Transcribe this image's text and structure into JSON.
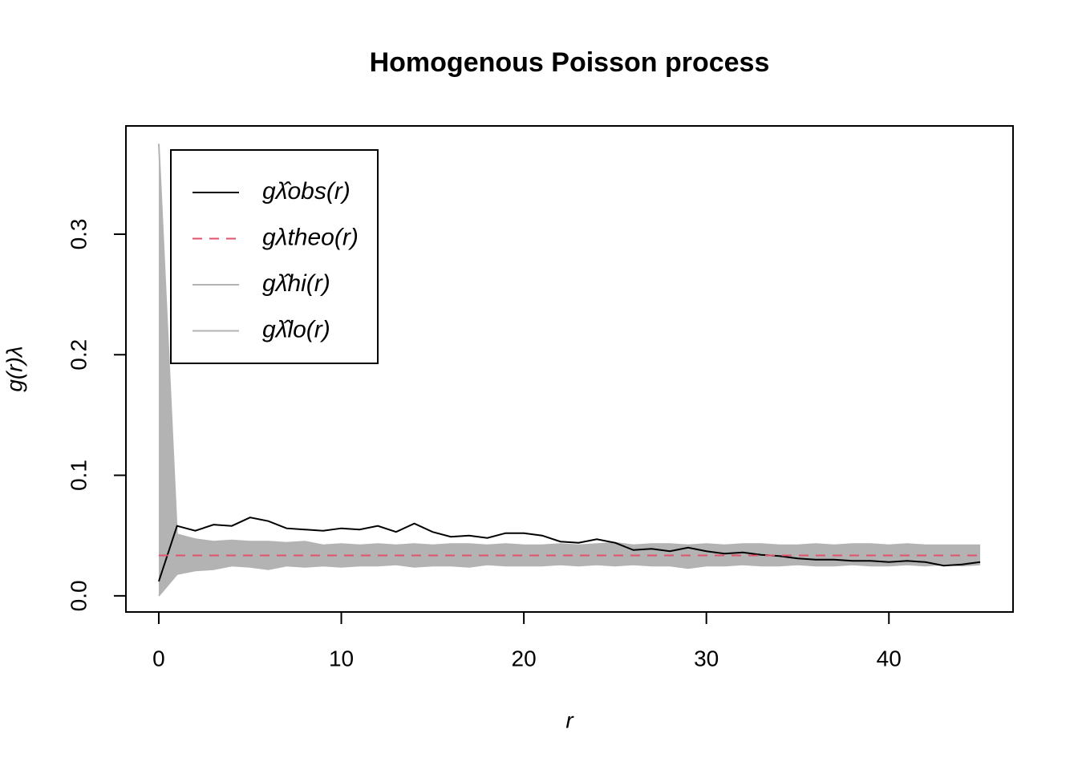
{
  "chart_data": {
    "type": "line",
    "title": "Homogenous Poisson process",
    "x_label": "r",
    "y_label": "g(r)λ",
    "x": [
      0,
      1,
      2,
      3,
      4,
      5,
      6,
      7,
      8,
      9,
      10,
      11,
      12,
      13,
      14,
      15,
      16,
      17,
      18,
      19,
      20,
      21,
      22,
      23,
      24,
      25,
      26,
      27,
      28,
      29,
      30,
      31,
      32,
      33,
      34,
      35,
      36,
      37,
      38,
      39,
      40,
      41,
      42,
      43,
      44,
      45
    ],
    "series": [
      {
        "name": "gλ̂obs(r)",
        "color": "#000000",
        "dash": false,
        "values": [
          0.012,
          0.058,
          0.054,
          0.059,
          0.058,
          0.065,
          0.062,
          0.056,
          0.055,
          0.054,
          0.056,
          0.055,
          0.058,
          0.053,
          0.06,
          0.053,
          0.049,
          0.05,
          0.048,
          0.052,
          0.052,
          0.05,
          0.045,
          0.044,
          0.047,
          0.044,
          0.038,
          0.039,
          0.037,
          0.04,
          0.037,
          0.035,
          0.036,
          0.034,
          0.033,
          0.031,
          0.03,
          0.03,
          0.029,
          0.029,
          0.028,
          0.029,
          0.028,
          0.025,
          0.026,
          0.028
        ]
      },
      {
        "name": "gλtheo(r)",
        "color": "#DF536B",
        "dash": true,
        "values": [
          0.0335,
          0.0335,
          0.0335,
          0.0335,
          0.0335,
          0.0335,
          0.0335,
          0.0335,
          0.0335,
          0.0335,
          0.0335,
          0.0335,
          0.0335,
          0.0335,
          0.0335,
          0.0335,
          0.0335,
          0.0335,
          0.0335,
          0.0335,
          0.0335,
          0.0335,
          0.0335,
          0.0335,
          0.0335,
          0.0335,
          0.0335,
          0.0335,
          0.0335,
          0.0335,
          0.0335,
          0.0335,
          0.0335,
          0.0335,
          0.0335,
          0.0335,
          0.0335,
          0.0335,
          0.0335,
          0.0335,
          0.0335,
          0.0335,
          0.0335,
          0.0335,
          0.0335,
          0.0335
        ]
      },
      {
        "name": "gλ̂hi(r)",
        "color": "#B3B3B3",
        "dash": false,
        "values": [
          0.375,
          0.051,
          0.047,
          0.045,
          0.046,
          0.045,
          0.045,
          0.044,
          0.045,
          0.042,
          0.043,
          0.042,
          0.043,
          0.042,
          0.043,
          0.042,
          0.043,
          0.043,
          0.042,
          0.043,
          0.042,
          0.042,
          0.043,
          0.042,
          0.043,
          0.044,
          0.042,
          0.043,
          0.043,
          0.042,
          0.043,
          0.042,
          0.043,
          0.043,
          0.042,
          0.042,
          0.043,
          0.042,
          0.043,
          0.043,
          0.042,
          0.043,
          0.042,
          0.042,
          0.042,
          0.042
        ]
      },
      {
        "name": "gλ̂lo(r)",
        "color": "#B3B3B3",
        "dash": false,
        "values": [
          0.0,
          0.018,
          0.021,
          0.022,
          0.025,
          0.024,
          0.022,
          0.025,
          0.024,
          0.025,
          0.024,
          0.025,
          0.025,
          0.026,
          0.024,
          0.025,
          0.025,
          0.024,
          0.026,
          0.025,
          0.025,
          0.025,
          0.026,
          0.025,
          0.026,
          0.025,
          0.026,
          0.025,
          0.025,
          0.023,
          0.025,
          0.025,
          0.026,
          0.025,
          0.025,
          0.026,
          0.025,
          0.025,
          0.026,
          0.025,
          0.025,
          0.026,
          0.025,
          0.026,
          0.025,
          0.026
        ]
      }
    ],
    "xlim": [
      -1.8,
      46.8
    ],
    "ylim": [
      -0.0134,
      0.3898
    ],
    "xticks": [
      0,
      10,
      20,
      30,
      40
    ],
    "yticks": [
      {
        "value": 0,
        "label": "0.0"
      },
      {
        "value": 0.1,
        "label": "0.1"
      },
      {
        "value": 0.2,
        "label": "0.2"
      },
      {
        "value": 0.3,
        "label": "0.3"
      }
    ],
    "legend": "top-left"
  }
}
